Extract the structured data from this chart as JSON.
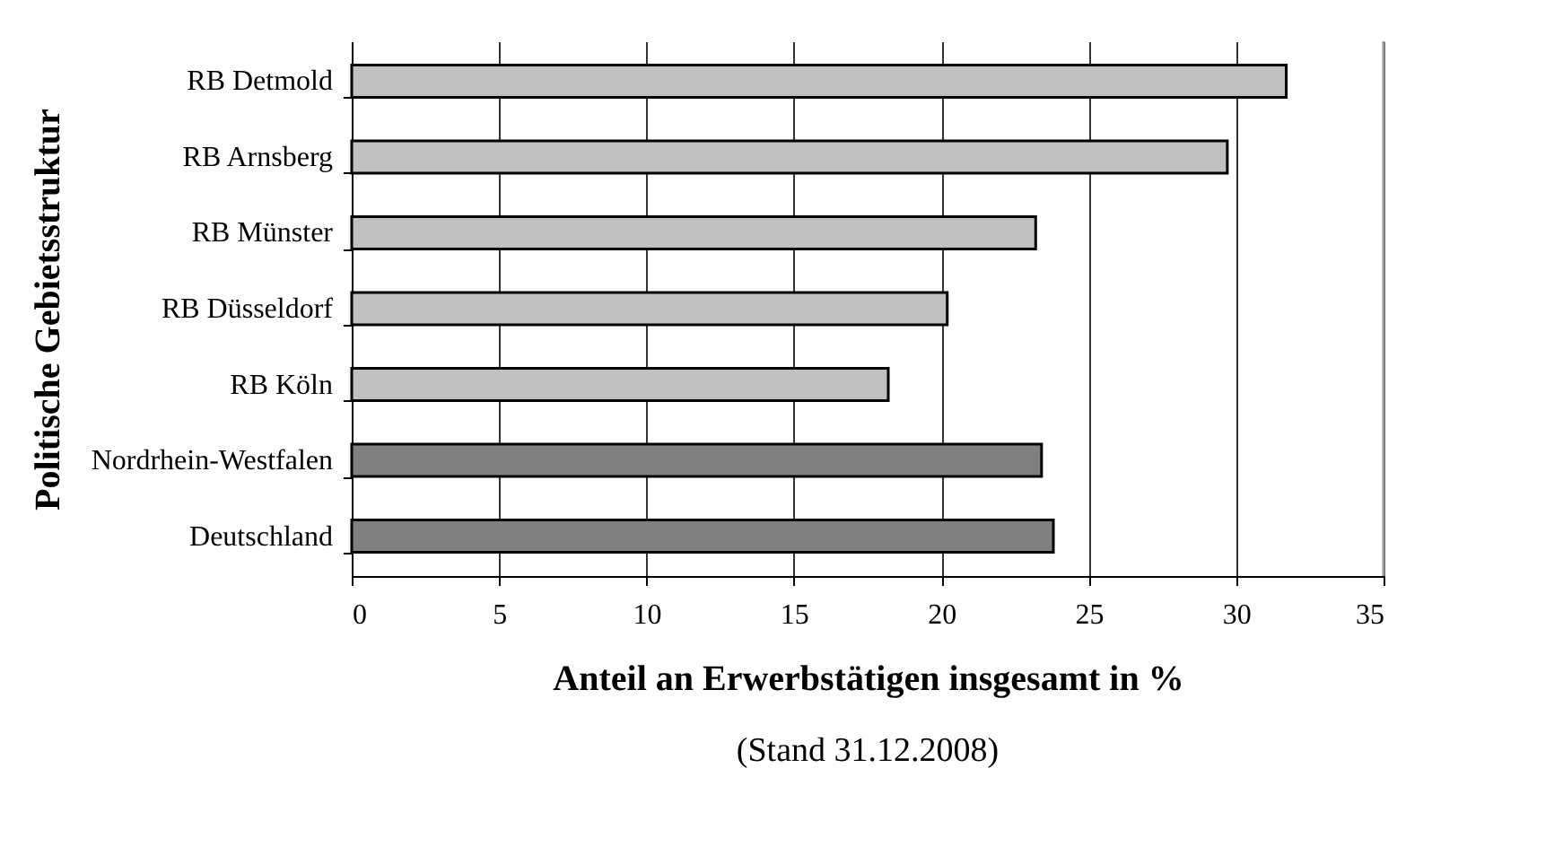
{
  "chart_data": {
    "type": "bar",
    "orientation": "horizontal",
    "categories": [
      "RB Detmold",
      "RB Arnsberg",
      "RB Münster",
      "RB Düsseldorf",
      "RB Köln",
      "Nordrhein-Westfalen",
      "Deutschland"
    ],
    "values": [
      31.7,
      29.7,
      23.2,
      20.2,
      18.2,
      23.4,
      23.8
    ],
    "colors": [
      "#c0c0c0",
      "#c0c0c0",
      "#c0c0c0",
      "#c0c0c0",
      "#c0c0c0",
      "#808080",
      "#808080"
    ],
    "xlim": [
      0,
      35
    ],
    "xticks": [
      0,
      5,
      10,
      15,
      20,
      25,
      30,
      35
    ],
    "grid": "x",
    "xlabel": "Anteil an Erwerbstätigen insgesamt in %",
    "ylabel": "Politische Gebietsstruktur",
    "annotations": [
      "(Stand 31.12.2008)"
    ]
  }
}
